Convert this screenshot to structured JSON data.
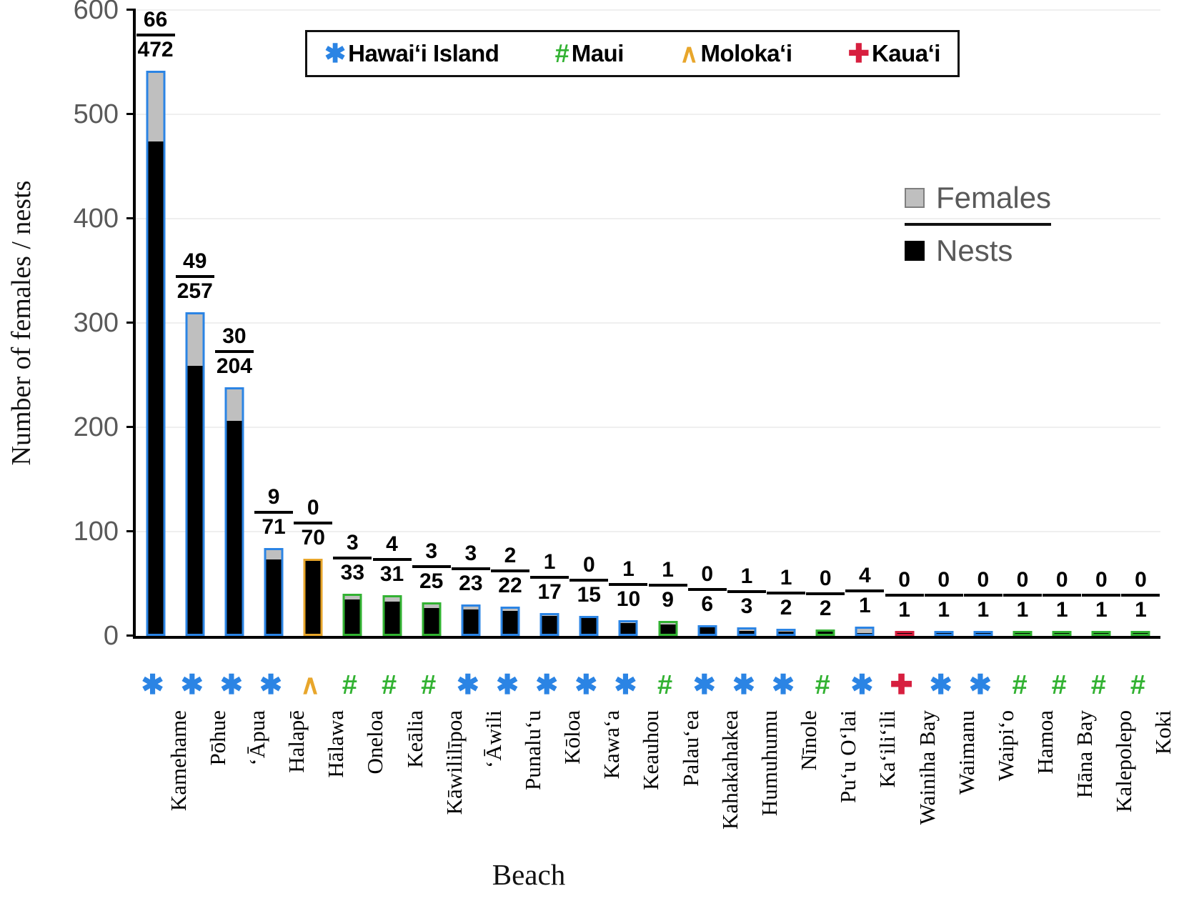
{
  "chart_data": {
    "type": "bar",
    "stacked": true,
    "xlabel": "Beach",
    "ylabel": "Number of females / nests",
    "ylim": [
      0,
      600
    ],
    "yticks": [
      0,
      100,
      200,
      300,
      400,
      500,
      600
    ],
    "grid": "horizontal, faint",
    "legend_position": "island legend top center boxed; series legend right area",
    "series_legend": [
      {
        "name": "Females",
        "color": "#BFBFBF"
      },
      {
        "name": "Nests",
        "color": "#000000"
      }
    ],
    "island_legend": [
      {
        "id": "hawaii",
        "symbol": "✱",
        "label": "Hawaiʻi Island",
        "color": "#2B84E4"
      },
      {
        "id": "maui",
        "symbol": "#",
        "label": "Maui",
        "color": "#32B232"
      },
      {
        "id": "molokai",
        "symbol": "∧",
        "label": "Molokaʻi",
        "color": "#E8A62B"
      },
      {
        "id": "kauai",
        "symbol": "✚",
        "label": "Kauaʻi",
        "color": "#D71F3F"
      }
    ],
    "bars": [
      {
        "beach": "Kamehame",
        "island": "hawaii",
        "females": 66,
        "nests": 472
      },
      {
        "beach": "Pōhue",
        "island": "hawaii",
        "females": 49,
        "nests": 257
      },
      {
        "beach": "ʻĀpua",
        "island": "hawaii",
        "females": 30,
        "nests": 204
      },
      {
        "beach": "Halapē",
        "island": "hawaii",
        "females": 9,
        "nests": 71
      },
      {
        "beach": "Hālawa",
        "island": "molokai",
        "females": 0,
        "nests": 70
      },
      {
        "beach": "Oneloa",
        "island": "maui",
        "females": 3,
        "nests": 33
      },
      {
        "beach": "Keālia",
        "island": "maui",
        "females": 4,
        "nests": 31
      },
      {
        "beach": "Kāwililīpoa",
        "island": "maui",
        "females": 3,
        "nests": 25
      },
      {
        "beach": "ʻĀwili",
        "island": "hawaii",
        "females": 3,
        "nests": 23
      },
      {
        "beach": "Punaluʻu",
        "island": "hawaii",
        "females": 2,
        "nests": 22
      },
      {
        "beach": "Kōloa",
        "island": "hawaii",
        "females": 1,
        "nests": 17
      },
      {
        "beach": "Kawaʻa",
        "island": "hawaii",
        "females": 0,
        "nests": 15
      },
      {
        "beach": "Keauhou",
        "island": "hawaii",
        "females": 1,
        "nests": 10
      },
      {
        "beach": "Palauʻea",
        "island": "maui",
        "females": 1,
        "nests": 9
      },
      {
        "beach": "Kahakahakea",
        "island": "hawaii",
        "females": 0,
        "nests": 6
      },
      {
        "beach": "Humuhumu",
        "island": "hawaii",
        "females": 1,
        "nests": 3
      },
      {
        "beach": "Nīnole",
        "island": "hawaii",
        "females": 1,
        "nests": 2
      },
      {
        "beach": "Puʻu Oʻlai",
        "island": "maui",
        "females": 0,
        "nests": 2
      },
      {
        "beach": "Kaʻiliʻili",
        "island": "hawaii",
        "females": 4,
        "nests": 1
      },
      {
        "beach": "Wainiha Bay",
        "island": "kauai",
        "females": 0,
        "nests": 1
      },
      {
        "beach": "Waimanu",
        "island": "hawaii",
        "females": 0,
        "nests": 1
      },
      {
        "beach": "Waipiʻo",
        "island": "hawaii",
        "females": 0,
        "nests": 1
      },
      {
        "beach": "Hamoa",
        "island": "maui",
        "females": 0,
        "nests": 1
      },
      {
        "beach": "Hāna Bay",
        "island": "maui",
        "females": 0,
        "nests": 1
      },
      {
        "beach": "Kalepolepo",
        "island": "maui",
        "females": 0,
        "nests": 1
      },
      {
        "beach": "Koki",
        "island": "maui",
        "females": 0,
        "nests": 1
      }
    ],
    "colors": {
      "females_fill": "#BFBFBF",
      "nests_fill": "#000000",
      "axis": "#000000",
      "tick_label": "#595959",
      "gridline": "#EFEFEF"
    }
  }
}
